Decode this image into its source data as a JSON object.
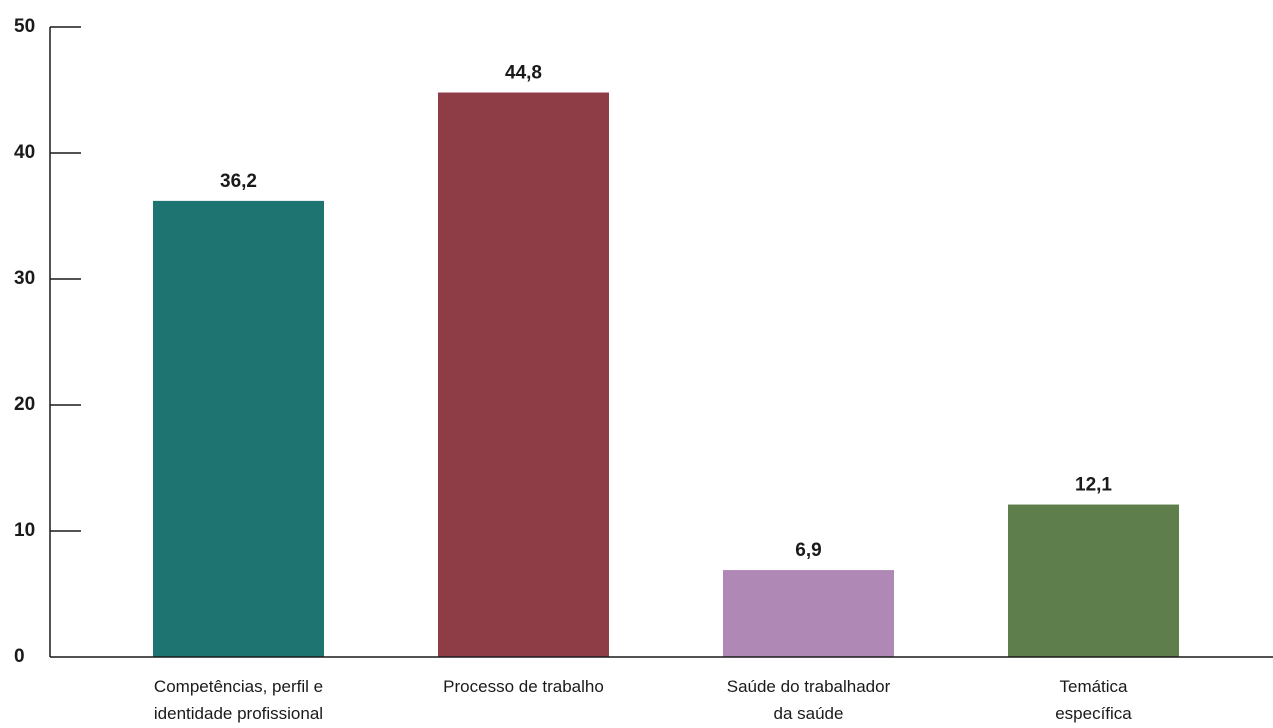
{
  "chart_data": {
    "type": "bar",
    "title": "",
    "xlabel": "",
    "ylabel": "",
    "ylim": [
      0,
      50
    ],
    "y_ticks": [
      "0",
      "10",
      "20",
      "30",
      "40",
      "50"
    ],
    "grid": false,
    "categories": [
      [
        "Competências, perfil e",
        "identidade profissional"
      ],
      [
        "Processo de trabalho"
      ],
      [
        "Saúde do trabalhador",
        "da saúde"
      ],
      [
        "Temática",
        "específica"
      ]
    ],
    "values": [
      36.2,
      44.8,
      6.9,
      12.1
    ],
    "value_labels": [
      "36,2",
      "44,8",
      "6,9",
      "12,1"
    ],
    "colors": [
      "#1e7470",
      "#8e3c46",
      "#b088b6",
      "#5e7f4b"
    ]
  }
}
